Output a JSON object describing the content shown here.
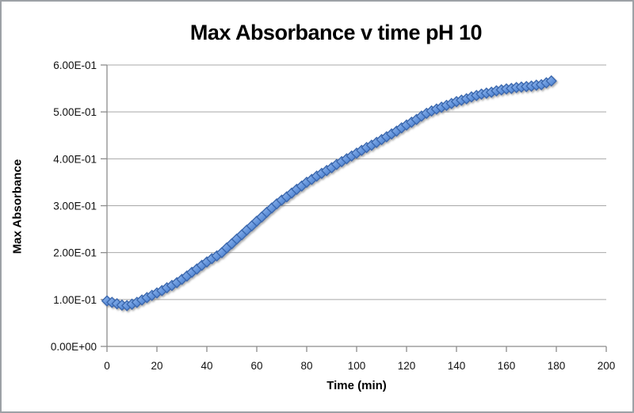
{
  "chart": {
    "title": "Max Absorbance v time pH 10",
    "y_axis": {
      "label": "Max Absorbance",
      "tick_labels": [
        "0.00E+00",
        "1.00E-01",
        "2.00E-01",
        "3.00E-01",
        "4.00E-01",
        "5.00E-01",
        "6.00E-01"
      ]
    },
    "x_axis": {
      "label": "Time (min)",
      "tick_labels": [
        "0",
        "20",
        "40",
        "60",
        "80",
        "100",
        "120",
        "140",
        "160",
        "180",
        "200"
      ]
    }
  },
  "chart_data": {
    "type": "scatter",
    "title": "Max Absorbance v time pH 10",
    "xlabel": "Time (min)",
    "ylabel": "Max Absorbance",
    "xlim": [
      0,
      200
    ],
    "ylim": [
      0,
      0.6
    ],
    "x_tick_step": 20,
    "y_tick_step": 0.1,
    "grid": true,
    "legend": "none",
    "marker": "diamond",
    "marker_fill": "#6495DD",
    "marker_fill_light": "#9BBCEC",
    "marker_fill_dark": "#4F7FCB",
    "marker_border": "#3A67AE",
    "gridline_color": "#a8a8a8",
    "axis_color": "#8c8c8c",
    "x": [
      0,
      2,
      4,
      6,
      8,
      10,
      12,
      14,
      16,
      18,
      20,
      22,
      24,
      26,
      28,
      30,
      32,
      34,
      36,
      38,
      40,
      42,
      44,
      46,
      48,
      50,
      52,
      54,
      56,
      58,
      60,
      62,
      64,
      66,
      68,
      70,
      72,
      74,
      76,
      78,
      80,
      82,
      84,
      86,
      88,
      90,
      92,
      94,
      96,
      98,
      100,
      102,
      104,
      106,
      108,
      110,
      112,
      114,
      116,
      118,
      120,
      122,
      124,
      126,
      128,
      130,
      132,
      134,
      136,
      138,
      140,
      142,
      144,
      146,
      148,
      150,
      152,
      154,
      156,
      158,
      160,
      162,
      164,
      166,
      168,
      170,
      172,
      174,
      176,
      178
    ],
    "y": [
      0.097,
      0.094,
      0.091,
      0.088,
      0.087,
      0.09,
      0.094,
      0.099,
      0.104,
      0.109,
      0.114,
      0.119,
      0.125,
      0.13,
      0.136,
      0.143,
      0.15,
      0.158,
      0.165,
      0.173,
      0.18,
      0.187,
      0.193,
      0.2,
      0.21,
      0.219,
      0.229,
      0.238,
      0.248,
      0.257,
      0.267,
      0.276,
      0.286,
      0.295,
      0.304,
      0.312,
      0.319,
      0.327,
      0.335,
      0.342,
      0.35,
      0.356,
      0.363,
      0.369,
      0.375,
      0.381,
      0.388,
      0.394,
      0.4,
      0.406,
      0.412,
      0.418,
      0.424,
      0.429,
      0.435,
      0.441,
      0.447,
      0.453,
      0.459,
      0.466,
      0.472,
      0.478,
      0.484,
      0.491,
      0.497,
      0.502,
      0.506,
      0.51,
      0.514,
      0.518,
      0.522,
      0.525,
      0.528,
      0.532,
      0.535,
      0.538,
      0.54,
      0.542,
      0.545,
      0.547,
      0.549,
      0.55,
      0.552,
      0.553,
      0.554,
      0.555,
      0.557,
      0.558,
      0.562,
      0.566
    ]
  }
}
